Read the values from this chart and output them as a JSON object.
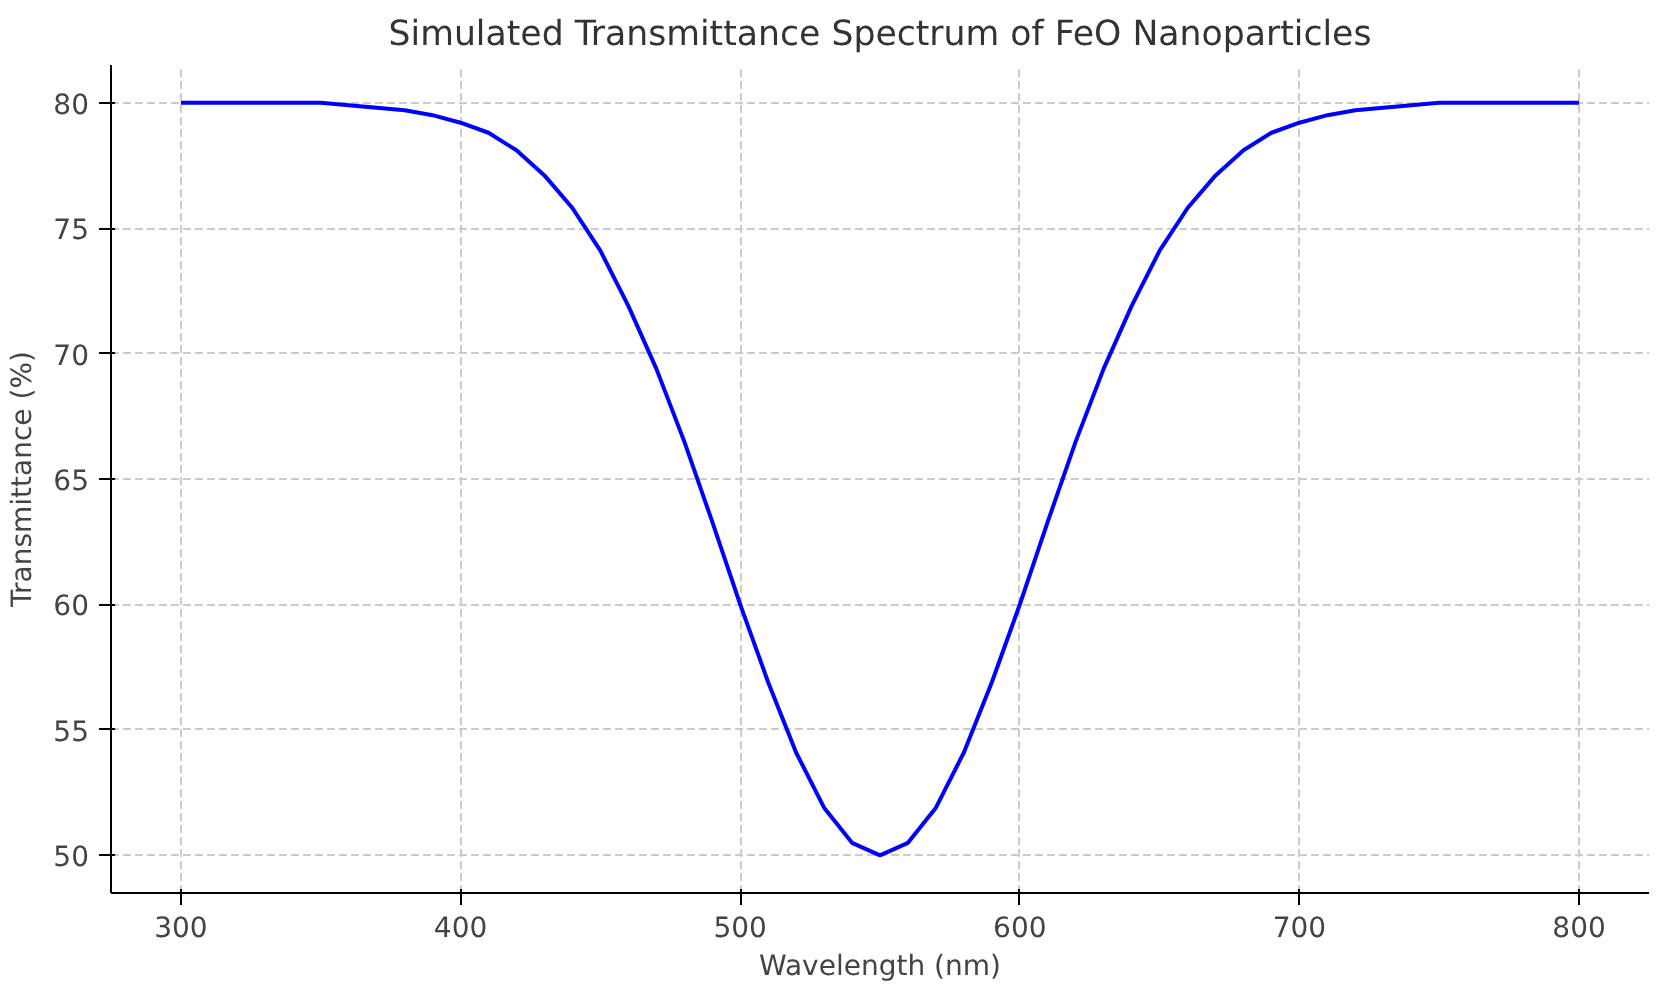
{
  "chart_data": {
    "type": "line",
    "title": "Simulated Transmittance Spectrum of FeO Nanoparticles",
    "xlabel": "Wavelength (nm)",
    "ylabel": "Transmittance (%)",
    "x": [
      300,
      310,
      320,
      330,
      340,
      350,
      360,
      370,
      380,
      390,
      400,
      410,
      420,
      430,
      440,
      450,
      460,
      470,
      480,
      490,
      500,
      510,
      520,
      530,
      540,
      550,
      560,
      570,
      580,
      590,
      600,
      610,
      620,
      630,
      640,
      650,
      660,
      670,
      680,
      690,
      700,
      710,
      720,
      730,
      740,
      750,
      760,
      770,
      780,
      790,
      800
    ],
    "series": [
      {
        "color": "#0000ff",
        "values": [
          80.0,
          80.0,
          80.0,
          80.0,
          80.0,
          80.0,
          79.9,
          79.8,
          79.7,
          79.5,
          79.2,
          78.8,
          78.1,
          77.1,
          75.8,
          74.1,
          71.9,
          69.4,
          66.5,
          63.3,
          60.0,
          56.9,
          54.1,
          51.9,
          50.5,
          50.0,
          50.5,
          51.9,
          54.1,
          56.9,
          60.0,
          63.3,
          66.5,
          69.4,
          71.9,
          74.1,
          75.8,
          77.1,
          78.1,
          78.8,
          79.2,
          79.5,
          79.7,
          79.8,
          79.9,
          80.0,
          80.0,
          80.0,
          80.0,
          80.0,
          80.0
        ]
      }
    ],
    "xlim": [
      275,
      825
    ],
    "ylim": [
      48.5,
      81.5
    ],
    "xticks": [
      300,
      400,
      500,
      600,
      700,
      800
    ],
    "yticks": [
      50,
      55,
      60,
      65,
      70,
      75,
      80
    ],
    "grid": true,
    "line_style": "solid"
  }
}
